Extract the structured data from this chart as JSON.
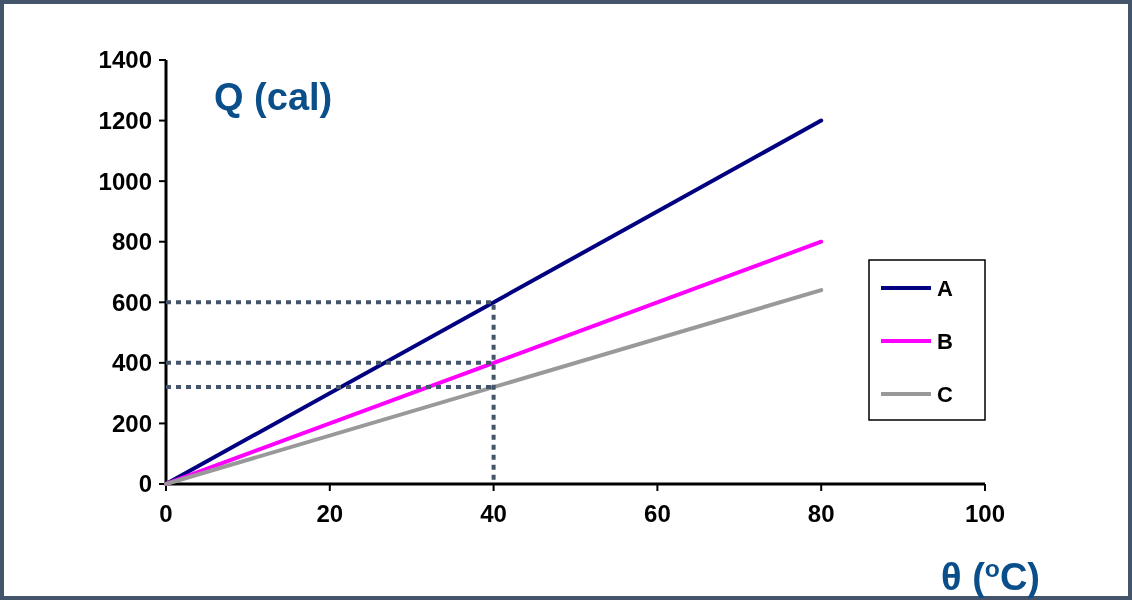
{
  "chart_data": {
    "type": "line",
    "xlabel": "θ ($^{o}$C)",
    "ylabel": "Q (cal)",
    "xlim": [
      0,
      100
    ],
    "ylim": [
      0,
      1400
    ],
    "xticks": [
      0,
      20,
      40,
      60,
      80,
      100
    ],
    "yticks": [
      0,
      200,
      400,
      600,
      800,
      1000,
      1200,
      1400
    ],
    "grid": false,
    "legend": "right",
    "marker": "none",
    "line_style": "solid",
    "series": [
      {
        "name": "A",
        "color": "#000080",
        "x": [
          0,
          80
        ],
        "values": [
          0,
          1200
        ]
      },
      {
        "name": "B",
        "color": "#ff00ff",
        "x": [
          0,
          80
        ],
        "values": [
          0,
          800
        ]
      },
      {
        "name": "C",
        "color": "#999999",
        "x": [
          0,
          80
        ],
        "values": [
          0,
          640
        ]
      },
      {
        "color": "#44546a",
        "line_style": "dotted",
        "x": [
          0,
          40,
          40
        ],
        "values": [
          600,
          600,
          0
        ]
      },
      {
        "color": "#44546a",
        "line_style": "dotted",
        "x": [
          0,
          40
        ],
        "values": [
          400,
          400
        ]
      },
      {
        "color": "#44546a",
        "line_style": "dotted",
        "x": [
          0,
          40
        ],
        "values": [
          320,
          320
        ]
      }
    ]
  }
}
